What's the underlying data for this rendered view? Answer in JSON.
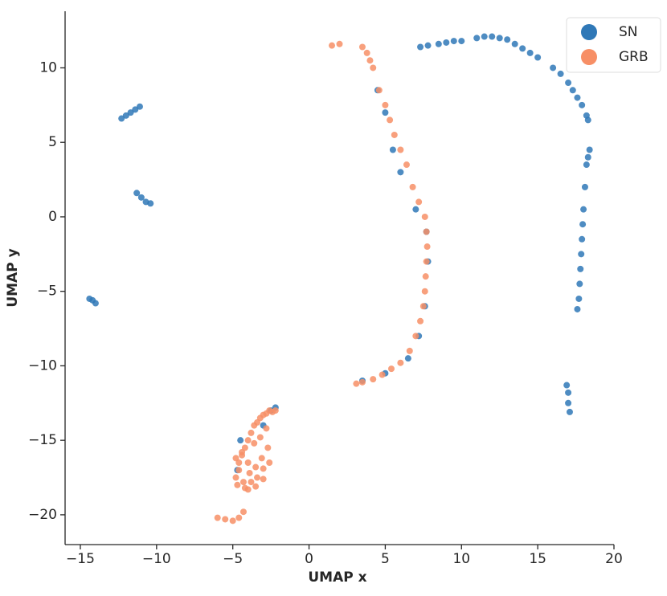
{
  "chart_data": {
    "type": "scatter",
    "x_label": "UMAP x",
    "y_label": "UMAP y",
    "xlim": [
      -16,
      20
    ],
    "ylim": [
      -22,
      13.8
    ],
    "xticks": [
      {
        "value": -15,
        "label": "−15"
      },
      {
        "value": -10,
        "label": "−10"
      },
      {
        "value": -5,
        "label": "−5"
      },
      0,
      5,
      10,
      15,
      20
    ],
    "yticks": [
      {
        "value": -20,
        "label": "−20"
      },
      {
        "value": -15,
        "label": "−15"
      },
      {
        "value": -10,
        "label": "−10"
      },
      {
        "value": -5,
        "label": "−5"
      },
      0,
      5,
      10
    ],
    "legend": "upper right",
    "series": [
      {
        "name": "SN",
        "color": "#2f78b7",
        "x": [
          -12.3,
          -12,
          -11.7,
          -11.4,
          -11.1,
          -11.3,
          -11,
          -10.7,
          -10.4,
          -14.4,
          -14.2,
          -14,
          7.3,
          7.8,
          8.5,
          9,
          9.5,
          10,
          11,
          11.5,
          12,
          12.5,
          13,
          13.5,
          14,
          14.5,
          15,
          16,
          16.5,
          17,
          17.3,
          17.6,
          17.9,
          18.2,
          18.3,
          18.4,
          18.3,
          18.2,
          18.1,
          18.0,
          17.95,
          17.9,
          17.85,
          17.8,
          17.75,
          17.7,
          17.6,
          16.9,
          17,
          17,
          17.1,
          4.5,
          5,
          5.5,
          6,
          7,
          7.7,
          7.8,
          7.6,
          7.2,
          6.5,
          5,
          3.5,
          -4.5,
          -2.5,
          -2.2,
          -4.7,
          -3
        ],
        "y": [
          6.6,
          6.8,
          7,
          7.2,
          7.4,
          1.6,
          1.3,
          1.0,
          0.9,
          -5.5,
          -5.6,
          -5.8,
          11.4,
          11.5,
          11.6,
          11.7,
          11.8,
          11.8,
          12,
          12.1,
          12.1,
          12,
          11.9,
          11.6,
          11.3,
          11,
          10.7,
          10,
          9.6,
          9,
          8.5,
          8,
          7.5,
          6.8,
          6.5,
          4.5,
          4,
          3.5,
          2,
          0.5,
          -0.5,
          -1.5,
          -2.5,
          -3.5,
          -4.5,
          -5.5,
          -6.2,
          -11.3,
          -11.8,
          -12.5,
          -13.1,
          8.5,
          7,
          4.5,
          3,
          0.5,
          -1,
          -3,
          -6,
          -8,
          -9.5,
          -10.5,
          -11,
          -15,
          -13,
          -12.8,
          -17,
          -14
        ]
      },
      {
        "name": "GRB",
        "color": "#f78f66",
        "x": [
          1.5,
          2,
          3.5,
          3.8,
          4,
          4.2,
          4.6,
          5,
          5.3,
          5.6,
          6,
          6.4,
          6.8,
          7.2,
          7.6,
          7.7,
          7.75,
          7.7,
          7.65,
          7.6,
          7.5,
          7.3,
          7,
          6.6,
          6,
          5.4,
          4.8,
          4.2,
          3.5,
          3.1,
          -4.8,
          -4.6,
          -4.4,
          -4.2,
          -4.0,
          -3.8,
          -3.6,
          -3.4,
          -3.2,
          -3.0,
          -2.8,
          -2.6,
          -2.4,
          -2.2,
          -4.7,
          -4.3,
          -3.9,
          -3.5,
          -3.1,
          -2.7,
          -4.8,
          -4.4,
          -4.0,
          -3.6,
          -3.2,
          -2.8,
          -4.6,
          -4.2,
          -3.8,
          -3.4,
          -3.0,
          -2.6,
          -4.0,
          -3.5,
          -3.0,
          -6,
          -5.5,
          -5,
          -4.6,
          -4.3
        ],
        "y": [
          11.5,
          11.6,
          11.4,
          11,
          10.5,
          10,
          8.5,
          7.5,
          6.5,
          5.5,
          4.5,
          3.5,
          2,
          1,
          0,
          -1,
          -2,
          -3,
          -4,
          -5,
          -6,
          -7,
          -8,
          -9,
          -9.8,
          -10.2,
          -10.6,
          -10.9,
          -11.1,
          -11.2,
          -17.5,
          -16.5,
          -16,
          -15.5,
          -15,
          -14.5,
          -14,
          -13.8,
          -13.5,
          -13.3,
          -13.2,
          -13,
          -13.1,
          -13,
          -18,
          -17.8,
          -17.2,
          -16.8,
          -16.2,
          -15.5,
          -16.2,
          -15.8,
          -16.5,
          -15.2,
          -14.8,
          -14.2,
          -17,
          -18.2,
          -17.8,
          -17.5,
          -16.9,
          -16.5,
          -18.3,
          -18.1,
          -17.6,
          -20.2,
          -20.3,
          -20.4,
          -20.2,
          -19.8
        ]
      }
    ]
  }
}
